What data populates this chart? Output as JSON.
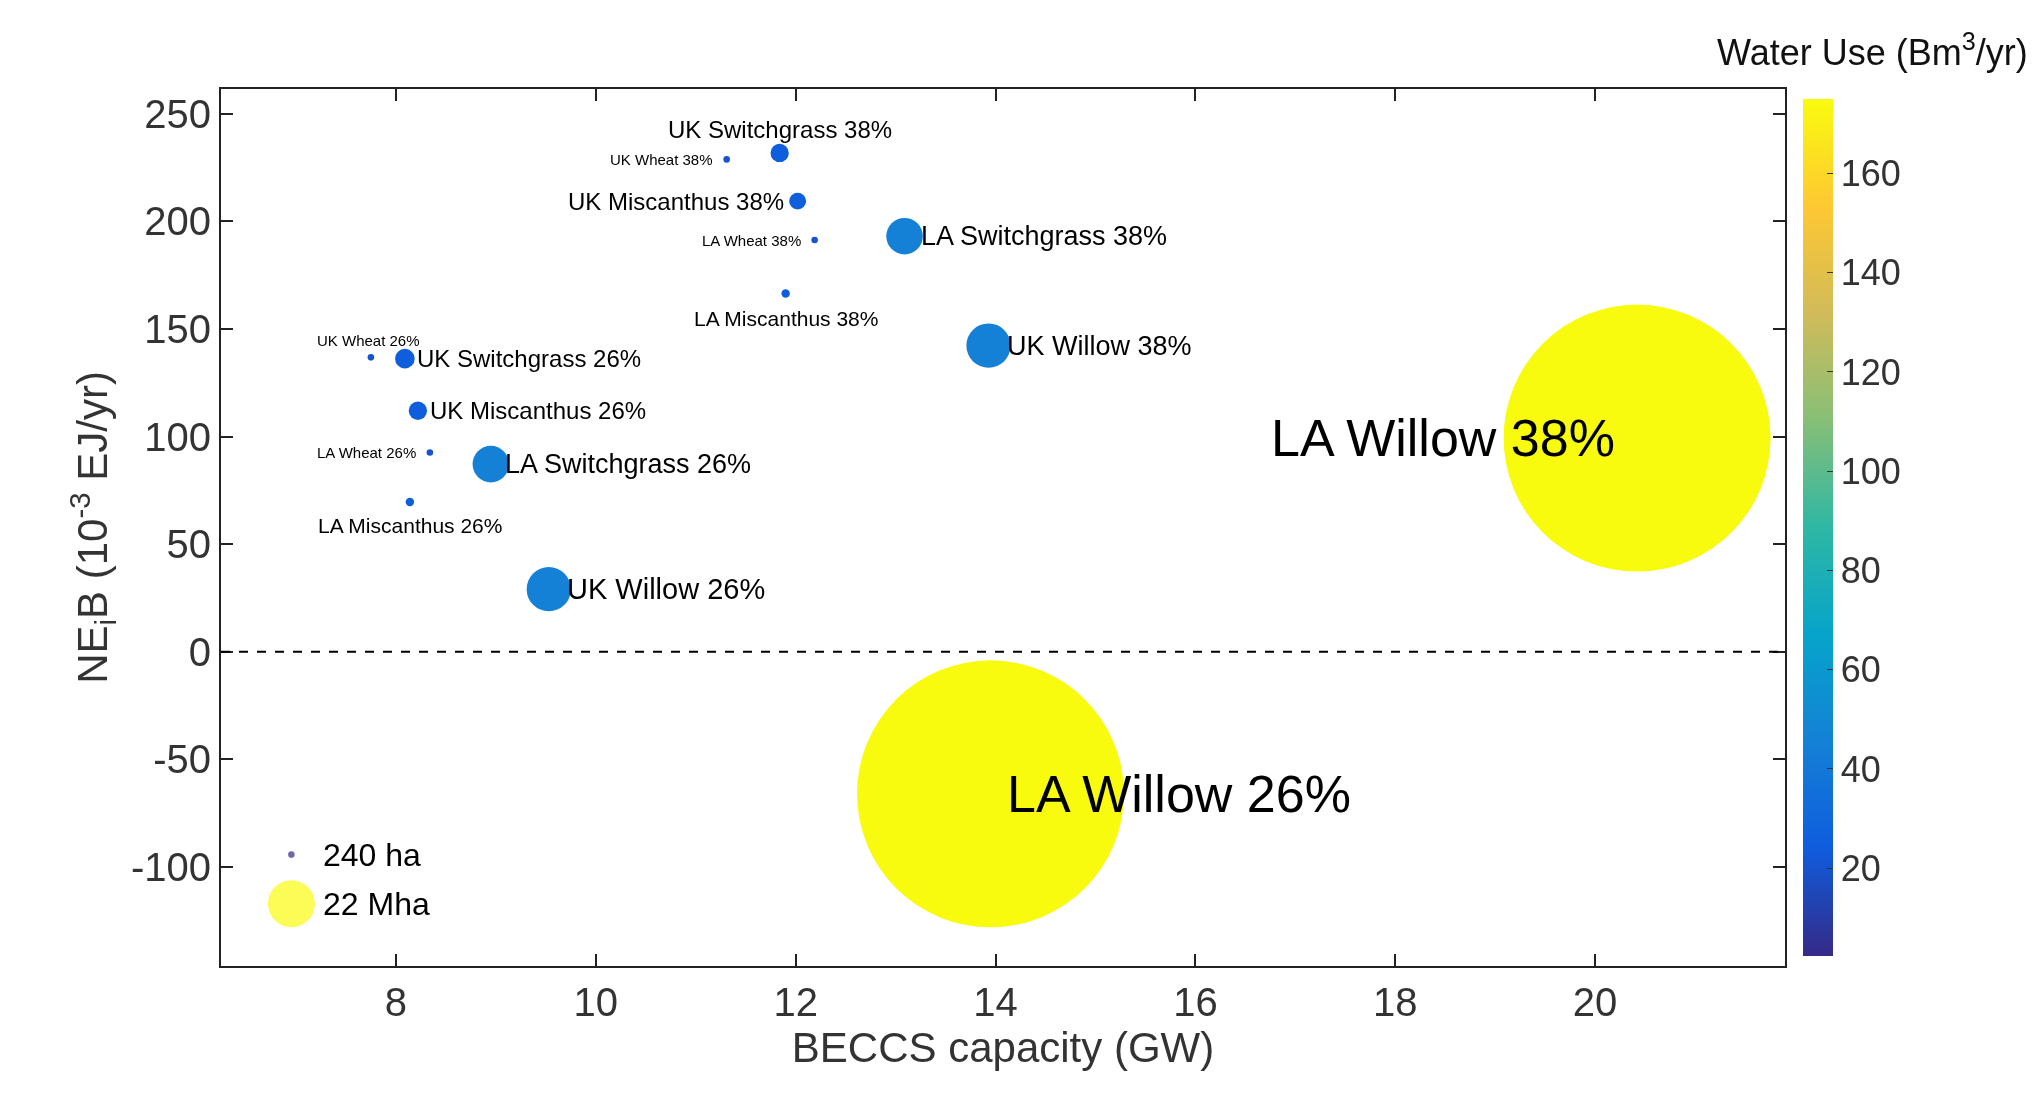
{
  "chart_data": {
    "type": "bubble",
    "xlabel": "BECCS capacity (GW)",
    "ylabel": "NE$_{i}$B (10$^{-3}$ EJ/yr)",
    "clabel": "Water Use (Bm$^{3}$/yr)",
    "xlim": [
      6.25,
      21.9
    ],
    "ylim": [
      -146,
      261.5
    ],
    "xticks": [
      8,
      10,
      12,
      14,
      16,
      18,
      20
    ],
    "yticks": [
      -100,
      -50,
      0,
      50,
      100,
      150,
      200,
      250
    ],
    "clim": [
      2.3,
      175
    ],
    "cticks": [
      20,
      40,
      60,
      80,
      100,
      120,
      140,
      160
    ],
    "legend": false,
    "ref_lines": [
      {
        "axis": "y",
        "value": 0,
        "line_style": "dashed",
        "color": "#000000"
      }
    ],
    "size_legend": [
      {
        "value": 0.0006,
        "label": "240 ha"
      },
      {
        "value": 0.031,
        "label": "22 Mha"
      }
    ],
    "series": [
      {
        "name": "UK Switchgrass 38%",
        "x": [
          11.84
        ],
        "values": [
          231.8
        ],
        "sizes": [
          0.0047
        ],
        "cvalues": [
          25
        ]
      },
      {
        "name": "UK Wheat 38%",
        "x": [
          11.31
        ],
        "values": [
          228.8
        ],
        "sizes": [
          0.0006
        ],
        "cvalues": [
          20
        ]
      },
      {
        "name": "UK Miscanthus 38%",
        "x": [
          12.02
        ],
        "values": [
          209.4
        ],
        "sizes": [
          0.004
        ],
        "cvalues": [
          25
        ]
      },
      {
        "name": "LA Wheat 38%",
        "x": [
          12.19
        ],
        "values": [
          191.3
        ],
        "sizes": [
          0.0006
        ],
        "cvalues": [
          20
        ]
      },
      {
        "name": "LA Switchgrass 38%",
        "x": [
          13.09
        ],
        "values": [
          193.1
        ],
        "sizes": [
          0.0187
        ],
        "cvalues": [
          45
        ]
      },
      {
        "name": "LA Miscanthus 38%",
        "x": [
          11.9
        ],
        "values": [
          166.5
        ],
        "sizes": [
          0.001
        ],
        "cvalues": [
          25
        ]
      },
      {
        "name": "UK Willow 38%",
        "x": [
          13.93
        ],
        "values": [
          142.3
        ],
        "sizes": [
          0.0275
        ],
        "cvalues": [
          45
        ]
      },
      {
        "name": "LA Willow 38%",
        "x": [
          20.42
        ],
        "values": [
          99.3
        ],
        "sizes": [
          1
        ],
        "cvalues": [
          175
        ]
      },
      {
        "name": "UK Wheat 26%",
        "x": [
          7.75
        ],
        "values": [
          136.8
        ],
        "sizes": [
          0.0006
        ],
        "cvalues": [
          20
        ]
      },
      {
        "name": "UK Switchgrass 26%",
        "x": [
          8.09
        ],
        "values": [
          136.2
        ],
        "sizes": [
          0.0054
        ],
        "cvalues": [
          25
        ]
      },
      {
        "name": "UK Miscanthus 26%",
        "x": [
          8.22
        ],
        "values": [
          112
        ],
        "sizes": [
          0.0047
        ],
        "cvalues": [
          25
        ]
      },
      {
        "name": "LA Wheat 26%",
        "x": [
          8.34
        ],
        "values": [
          92.6
        ],
        "sizes": [
          0.0006
        ],
        "cvalues": [
          20
        ]
      },
      {
        "name": "LA Switchgrass 26%",
        "x": [
          8.95
        ],
        "values": [
          87.2
        ],
        "sizes": [
          0.0187
        ],
        "cvalues": [
          45
        ]
      },
      {
        "name": "LA Miscanthus 26%",
        "x": [
          8.14
        ],
        "values": [
          69.6
        ],
        "sizes": [
          0.001
        ],
        "cvalues": [
          25
        ]
      },
      {
        "name": "UK Willow 26%",
        "x": [
          9.53
        ],
        "values": [
          29.1
        ],
        "sizes": [
          0.0275
        ],
        "cvalues": [
          45
        ]
      },
      {
        "name": "LA Willow 26%",
        "x": [
          13.95
        ],
        "values": [
          -66
        ],
        "sizes": [
          1
        ],
        "cvalues": [
          175
        ]
      }
    ]
  }
}
